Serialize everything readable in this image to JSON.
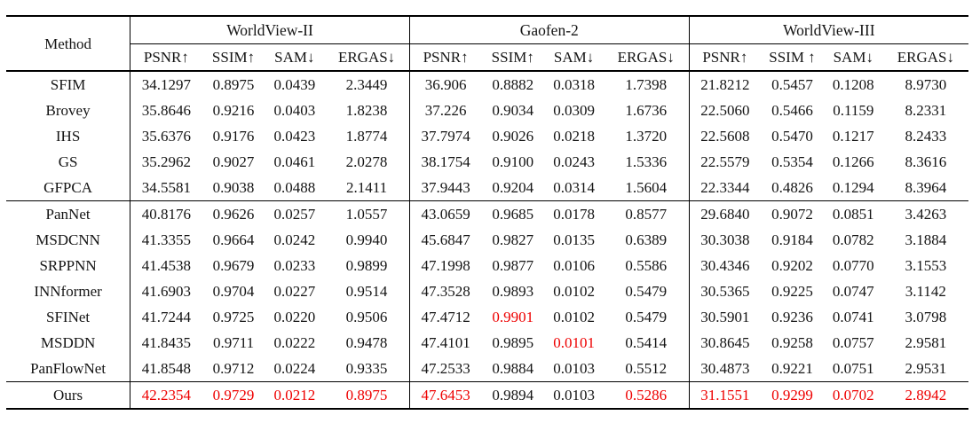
{
  "table": {
    "method_header": "Method",
    "groups": [
      {
        "name": "WorldView-II",
        "metrics": [
          "PSNR↑",
          "SSIM↑",
          "SAM↓",
          "ERGAS↓"
        ]
      },
      {
        "name": "Gaofen-2",
        "metrics": [
          "PSNR↑",
          "SSIM↑",
          "SAM↓",
          "ERGAS↓"
        ]
      },
      {
        "name": "WorldView-III",
        "metrics": [
          "PSNR↑",
          "SSIM ↑",
          "SAM↓",
          "ERGAS↓"
        ]
      }
    ],
    "row_groups": [
      {
        "rows": [
          {
            "method": "SFIM",
            "values": [
              "34.1297",
              "0.8975",
              "0.0439",
              "2.3449",
              "36.906",
              "0.8882",
              "0.0318",
              "1.7398",
              "21.8212",
              "0.5457",
              "0.1208",
              "8.9730"
            ],
            "red": []
          },
          {
            "method": "Brovey",
            "values": [
              "35.8646",
              "0.9216",
              "0.0403",
              "1.8238",
              "37.226",
              "0.9034",
              "0.0309",
              "1.6736",
              "22.5060",
              "0.5466",
              "0.1159",
              "8.2331"
            ],
            "red": []
          },
          {
            "method": "IHS",
            "values": [
              "35.6376",
              "0.9176",
              "0.0423",
              "1.8774",
              "37.7974",
              "0.9026",
              "0.0218",
              "1.3720",
              "22.5608",
              "0.5470",
              "0.1217",
              "8.2433"
            ],
            "red": []
          },
          {
            "method": "GS",
            "values": [
              "35.2962",
              "0.9027",
              "0.0461",
              "2.0278",
              "38.1754",
              "0.9100",
              "0.0243",
              "1.5336",
              "22.5579",
              "0.5354",
              "0.1266",
              "8.3616"
            ],
            "red": []
          },
          {
            "method": "GFPCA",
            "values": [
              "34.5581",
              "0.9038",
              "0.0488",
              "2.1411",
              "37.9443",
              "0.9204",
              "0.0314",
              "1.5604",
              "22.3344",
              "0.4826",
              "0.1294",
              "8.3964"
            ],
            "red": []
          }
        ]
      },
      {
        "rows": [
          {
            "method": "PanNet",
            "values": [
              "40.8176",
              "0.9626",
              "0.0257",
              "1.0557",
              "43.0659",
              "0.9685",
              "0.0178",
              "0.8577",
              "29.6840",
              "0.9072",
              "0.0851",
              "3.4263"
            ],
            "red": []
          },
          {
            "method": "MSDCNN",
            "values": [
              "41.3355",
              "0.9664",
              "0.0242",
              "0.9940",
              "45.6847",
              "0.9827",
              "0.0135",
              "0.6389",
              "30.3038",
              "0.9184",
              "0.0782",
              "3.1884"
            ],
            "red": []
          },
          {
            "method": "SRPPNN",
            "values": [
              "41.4538",
              "0.9679",
              "0.0233",
              "0.9899",
              "47.1998",
              "0.9877",
              "0.0106",
              "0.5586",
              "30.4346",
              "0.9202",
              "0.0770",
              "3.1553"
            ],
            "red": []
          },
          {
            "method": "INNformer",
            "values": [
              "41.6903",
              "0.9704",
              "0.0227",
              "0.9514",
              "47.3528",
              "0.9893",
              "0.0102",
              "0.5479",
              "30.5365",
              "0.9225",
              "0.0747",
              "3.1142"
            ],
            "red": []
          },
          {
            "method": "SFINet",
            "values": [
              "41.7244",
              "0.9725",
              "0.0220",
              "0.9506",
              "47.4712",
              "0.9901",
              "0.0102",
              "0.5479",
              "30.5901",
              "0.9236",
              "0.0741",
              "3.0798"
            ],
            "red": [
              5
            ]
          },
          {
            "method": "MSDDN",
            "values": [
              "41.8435",
              "0.9711",
              "0.0222",
              "0.9478",
              "47.4101",
              "0.9895",
              "0.0101",
              "0.5414",
              "30.8645",
              "0.9258",
              "0.0757",
              "2.9581"
            ],
            "red": [
              6
            ]
          },
          {
            "method": "PanFlowNet",
            "values": [
              "41.8548",
              "0.9712",
              "0.0224",
              "0.9335",
              "47.2533",
              "0.9884",
              "0.0103",
              "0.5512",
              "30.4873",
              "0.9221",
              "0.0751",
              "2.9531"
            ],
            "red": []
          }
        ]
      },
      {
        "rows": [
          {
            "method": "Ours",
            "values": [
              "42.2354",
              "0.9729",
              "0.0212",
              "0.8975",
              "47.6453",
              "0.9894",
              "0.0103",
              "0.5286",
              "31.1551",
              "0.9299",
              "0.0702",
              "2.8942"
            ],
            "red": [
              0,
              1,
              2,
              3,
              4,
              7,
              8,
              9,
              10,
              11
            ]
          }
        ]
      }
    ]
  },
  "colors": {
    "highlight_red": "#ee0000",
    "text": "#141414",
    "rule": "#000000"
  }
}
